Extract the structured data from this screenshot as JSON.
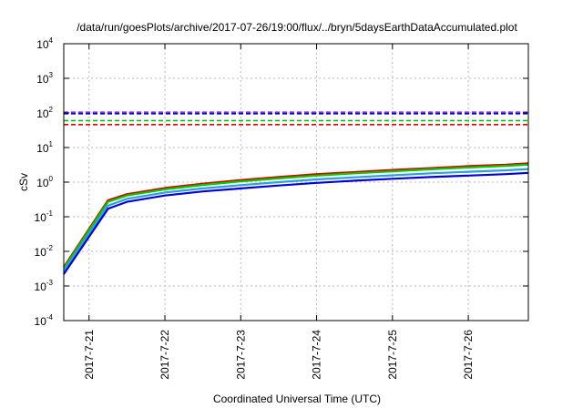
{
  "chart_data": {
    "type": "line",
    "title": "/data/run/goesPlots/archive/2017-07-26/19:00/flux/../bryn/5daysEarthDataAccumulated.plot",
    "xlabel": "Coordinated Universal Time (UTC)",
    "ylabel": "cSv",
    "yscale": "log",
    "ylim": [
      0.0001,
      10000
    ],
    "xlim": [
      "2017-07-20T16:00",
      "2017-07-26T19:00"
    ],
    "grid": true,
    "legend": "none",
    "x_tick_labels": [
      "2017-7-21",
      "2017-7-22",
      "2017-7-23",
      "2017-7-24",
      "2017-7-25",
      "2017-7-26"
    ],
    "x_tick_dates": [
      "2017-07-21T00:00",
      "2017-07-22T00:00",
      "2017-07-23T00:00",
      "2017-07-24T00:00",
      "2017-07-25T00:00",
      "2017-07-26T00:00"
    ],
    "y_tick_labels": [
      {
        "base": "10",
        "exp": "-4"
      },
      {
        "base": "10",
        "exp": "-3"
      },
      {
        "base": "10",
        "exp": "-2"
      },
      {
        "base": "10",
        "exp": "-1"
      },
      {
        "base": "10",
        "exp": "0"
      },
      {
        "base": "10",
        "exp": "1"
      },
      {
        "base": "10",
        "exp": "2"
      },
      {
        "base": "10",
        "exp": "3"
      },
      {
        "base": "10",
        "exp": "4"
      }
    ],
    "y_tick_values": [
      0.0001,
      0.001,
      0.01,
      0.1,
      1,
      10,
      100,
      1000,
      10000
    ],
    "thresholds": [
      {
        "value": 105,
        "color": "#8a2be2"
      },
      {
        "value": 95,
        "color": "#0000cc"
      },
      {
        "value": 60,
        "color": "#00cc00"
      },
      {
        "value": 46,
        "color": "#dd0000"
      }
    ],
    "series": [
      {
        "color": "#dd0000",
        "x": [
          "2017-07-20T16:00",
          "2017-07-21T06:00",
          "2017-07-21T12:00",
          "2017-07-22T00:00",
          "2017-07-22T12:00",
          "2017-07-23T00:00",
          "2017-07-23T12:00",
          "2017-07-24T00:00",
          "2017-07-24T12:00",
          "2017-07-25T00:00",
          "2017-07-25T12:00",
          "2017-07-26T00:00",
          "2017-07-26T12:00",
          "2017-07-26T19:00"
        ],
        "y": [
          0.0035,
          0.3,
          0.45,
          0.68,
          0.9,
          1.15,
          1.4,
          1.7,
          1.95,
          2.25,
          2.55,
          2.9,
          3.2,
          3.5
        ]
      },
      {
        "color": "#00cc00",
        "x": [
          "2017-07-20T16:00",
          "2017-07-21T06:00",
          "2017-07-21T12:00",
          "2017-07-22T00:00",
          "2017-07-22T12:00",
          "2017-07-23T00:00",
          "2017-07-23T12:00",
          "2017-07-24T00:00",
          "2017-07-24T12:00",
          "2017-07-25T00:00",
          "2017-07-25T12:00",
          "2017-07-26T00:00",
          "2017-07-26T12:00",
          "2017-07-26T19:00"
        ],
        "y": [
          0.0032,
          0.27,
          0.41,
          0.62,
          0.83,
          1.05,
          1.28,
          1.55,
          1.8,
          2.05,
          2.35,
          2.65,
          2.95,
          3.2
        ]
      },
      {
        "color": "#2aa0e0",
        "x": [
          "2017-07-20T16:00",
          "2017-07-21T06:00",
          "2017-07-21T12:00",
          "2017-07-22T00:00",
          "2017-07-22T12:00",
          "2017-07-23T00:00",
          "2017-07-23T12:00",
          "2017-07-24T00:00",
          "2017-07-24T12:00",
          "2017-07-25T00:00",
          "2017-07-25T12:00",
          "2017-07-26T00:00",
          "2017-07-26T12:00",
          "2017-07-26T19:00"
        ],
        "y": [
          0.0027,
          0.21,
          0.33,
          0.5,
          0.66,
          0.82,
          1.0,
          1.2,
          1.38,
          1.58,
          1.8,
          2.0,
          2.2,
          2.4
        ]
      },
      {
        "color": "#0000dd",
        "x": [
          "2017-07-20T16:00",
          "2017-07-21T06:00",
          "2017-07-21T12:00",
          "2017-07-22T00:00",
          "2017-07-22T12:00",
          "2017-07-23T00:00",
          "2017-07-23T12:00",
          "2017-07-24T00:00",
          "2017-07-24T12:00",
          "2017-07-25T00:00",
          "2017-07-25T12:00",
          "2017-07-26T00:00",
          "2017-07-26T12:00",
          "2017-07-26T19:00"
        ],
        "y": [
          0.0022,
          0.17,
          0.27,
          0.41,
          0.54,
          0.66,
          0.8,
          0.95,
          1.1,
          1.25,
          1.4,
          1.55,
          1.7,
          1.85
        ]
      }
    ]
  }
}
